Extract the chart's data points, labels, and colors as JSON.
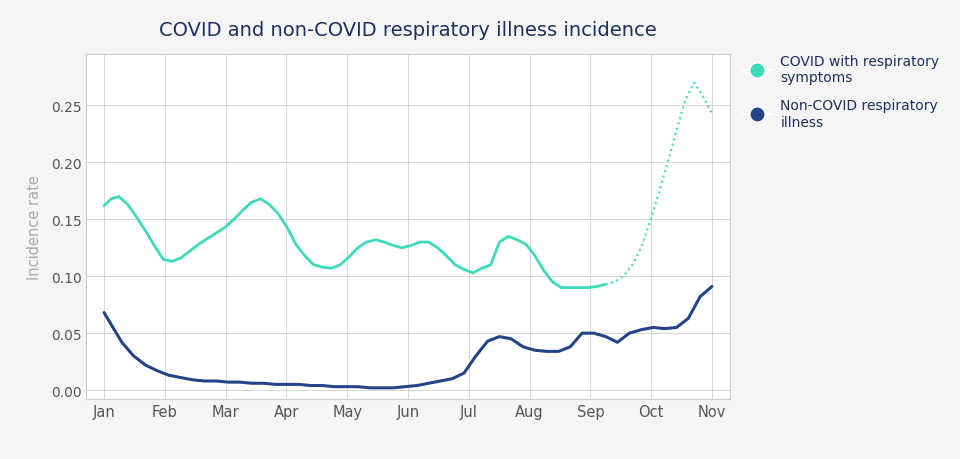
{
  "title": "COVID and non-COVID respiratory illness incidence",
  "ylabel": "Incidence rate",
  "background_color": "#f5f5f5",
  "plot_bg_color": "#ffffff",
  "title_color": "#1e3060",
  "axis_label_color": "#aaaaaa",
  "tick_color": "#555555",
  "ylim": [
    -0.008,
    0.295
  ],
  "months": [
    "Jan",
    "Feb",
    "Mar",
    "Apr",
    "May",
    "Jun",
    "Jul",
    "Aug",
    "Sep",
    "Oct",
    "Nov"
  ],
  "covid_color": "#3ddbb8",
  "noncovid_color": "#254488",
  "legend_covid_label": "COVID with respiratory\nsymptoms",
  "legend_noncovid_label": "Non-COVID respiratory\nillness",
  "covid_x": [
    0.0,
    0.12,
    0.25,
    0.4,
    0.55,
    0.7,
    0.85,
    1.0,
    1.15,
    1.3,
    1.45,
    1.6,
    1.75,
    1.9,
    2.05,
    2.2,
    2.35,
    2.5,
    2.65,
    2.8,
    2.95,
    3.1,
    3.25,
    3.4,
    3.55,
    3.7,
    3.85,
    4.0,
    4.15,
    4.3,
    4.45,
    4.6,
    4.75,
    4.9,
    5.05,
    5.2,
    5.35,
    5.5,
    5.65,
    5.8,
    5.95,
    6.1,
    6.25,
    6.4,
    6.55,
    6.7,
    6.85,
    7.0,
    7.15,
    7.3,
    7.45,
    7.6,
    7.75,
    7.9,
    8.05,
    8.2,
    8.35,
    8.5,
    8.65,
    8.8,
    8.95,
    9.1,
    9.25,
    9.4,
    9.55,
    9.7,
    9.85,
    10.0,
    10.15,
    10.3
  ],
  "covid_y": [
    0.162,
    0.168,
    0.17,
    0.163,
    0.152,
    0.14,
    0.127,
    0.115,
    0.113,
    0.116,
    0.122,
    0.128,
    0.133,
    0.138,
    0.143,
    0.15,
    0.158,
    0.165,
    0.168,
    0.163,
    0.155,
    0.143,
    0.128,
    0.118,
    0.11,
    0.108,
    0.107,
    0.11,
    0.117,
    0.125,
    0.13,
    0.132,
    0.13,
    0.127,
    0.125,
    0.127,
    0.13,
    0.13,
    0.125,
    0.118,
    0.11,
    0.106,
    0.103,
    0.107,
    0.11,
    0.13,
    0.135,
    0.132,
    0.128,
    0.118,
    0.105,
    0.095,
    0.09,
    0.09,
    0.09,
    0.09,
    0.091,
    0.093,
    0.095,
    0.1,
    0.11,
    0.125,
    0.148,
    0.173,
    0.2,
    0.228,
    0.255,
    0.27,
    0.258,
    0.243
  ],
  "noncovid_x": [
    0.0,
    0.15,
    0.3,
    0.5,
    0.7,
    0.9,
    1.1,
    1.3,
    1.5,
    1.7,
    1.9,
    2.1,
    2.3,
    2.5,
    2.7,
    2.9,
    3.1,
    3.3,
    3.5,
    3.7,
    3.9,
    4.1,
    4.3,
    4.5,
    4.7,
    4.9,
    5.1,
    5.3,
    5.5,
    5.7,
    5.9,
    6.1,
    6.3,
    6.5,
    6.7,
    6.9,
    7.1,
    7.3,
    7.5,
    7.7,
    7.9,
    8.1,
    8.3,
    8.5,
    8.7,
    8.9,
    9.1,
    9.3,
    9.5,
    9.7,
    9.9,
    10.1,
    10.3
  ],
  "noncovid_y": [
    0.068,
    0.055,
    0.042,
    0.03,
    0.022,
    0.017,
    0.013,
    0.011,
    0.009,
    0.008,
    0.008,
    0.007,
    0.007,
    0.006,
    0.006,
    0.005,
    0.005,
    0.005,
    0.004,
    0.004,
    0.003,
    0.003,
    0.003,
    0.002,
    0.002,
    0.002,
    0.003,
    0.004,
    0.006,
    0.008,
    0.01,
    0.015,
    0.03,
    0.043,
    0.047,
    0.045,
    0.038,
    0.035,
    0.034,
    0.034,
    0.038,
    0.05,
    0.05,
    0.047,
    0.042,
    0.05,
    0.053,
    0.055,
    0.054,
    0.055,
    0.063,
    0.082,
    0.091
  ],
  "dotted_split_idx": 57
}
